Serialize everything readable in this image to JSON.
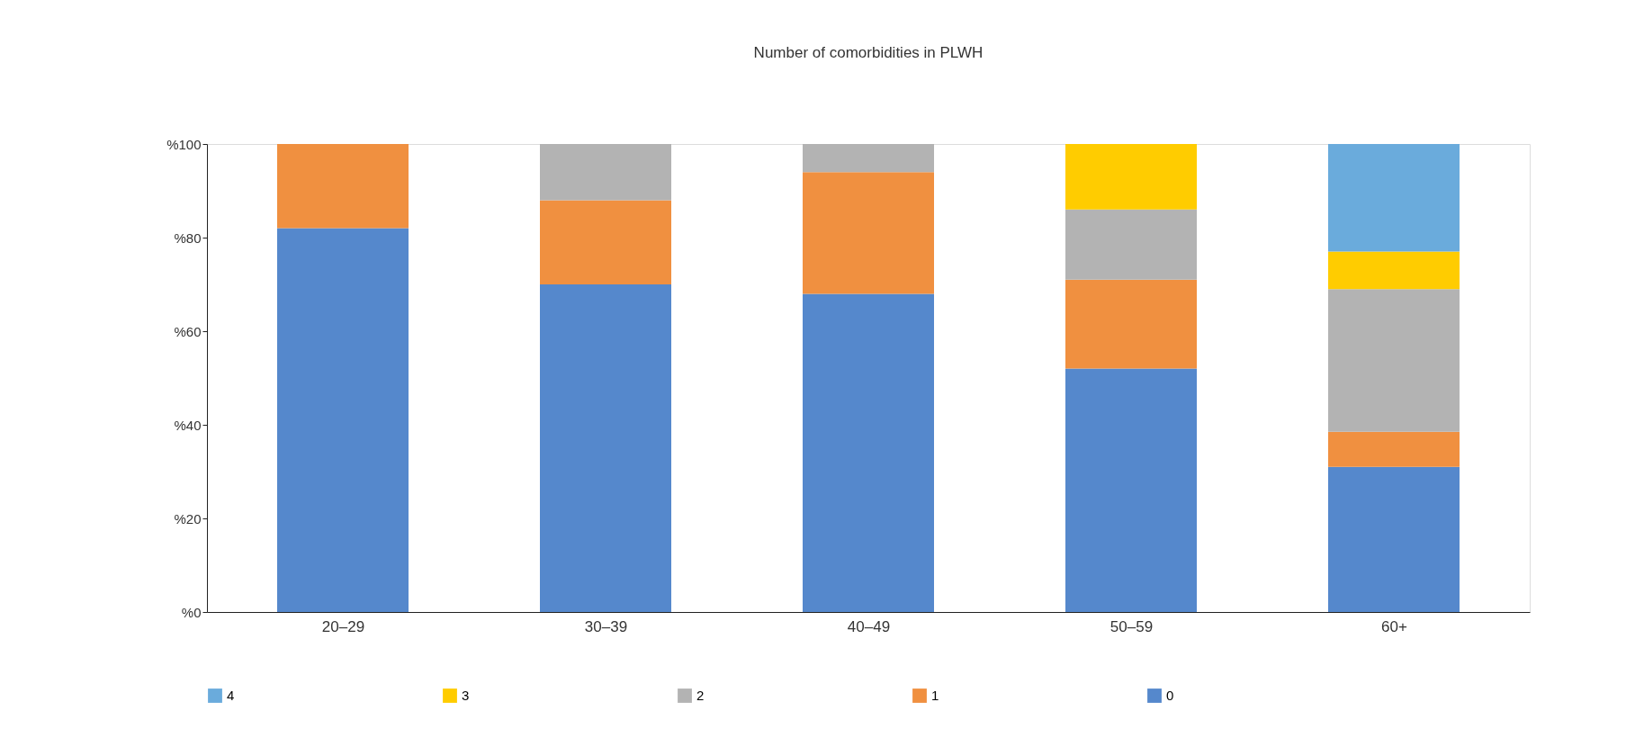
{
  "chart_data": {
    "type": "bar",
    "title": "Number of comorbidities in PLWH",
    "stacked": true,
    "categories": [
      "20–29",
      "30–39",
      "40–49",
      "50–59",
      "60+"
    ],
    "series": [
      {
        "name": "0",
        "color": "#5588cc",
        "values": [
          82,
          70,
          68,
          52,
          31
        ]
      },
      {
        "name": "1",
        "color": "#f09040",
        "values": [
          18,
          18,
          26,
          19,
          7.5
        ]
      },
      {
        "name": "2",
        "color": "#b3b3b3",
        "values": [
          null,
          12,
          6,
          15,
          30.5
        ]
      },
      {
        "name": "3",
        "color": "#ffcc00",
        "values": [
          null,
          null,
          null,
          14,
          8
        ]
      },
      {
        "name": "4",
        "color": "#6aabdc",
        "values": [
          null,
          null,
          null,
          null,
          23
        ]
      }
    ],
    "ylim": [
      0,
      100
    ],
    "yticks": [
      {
        "value": 0,
        "label": "%0"
      },
      {
        "value": 20,
        "label": "%20"
      },
      {
        "value": 40,
        "label": "%40"
      },
      {
        "value": 60,
        "label": "%60"
      },
      {
        "value": 80,
        "label": "%80"
      },
      {
        "value": 100,
        "label": "%100"
      }
    ],
    "grid": false,
    "legend": "bottom"
  }
}
